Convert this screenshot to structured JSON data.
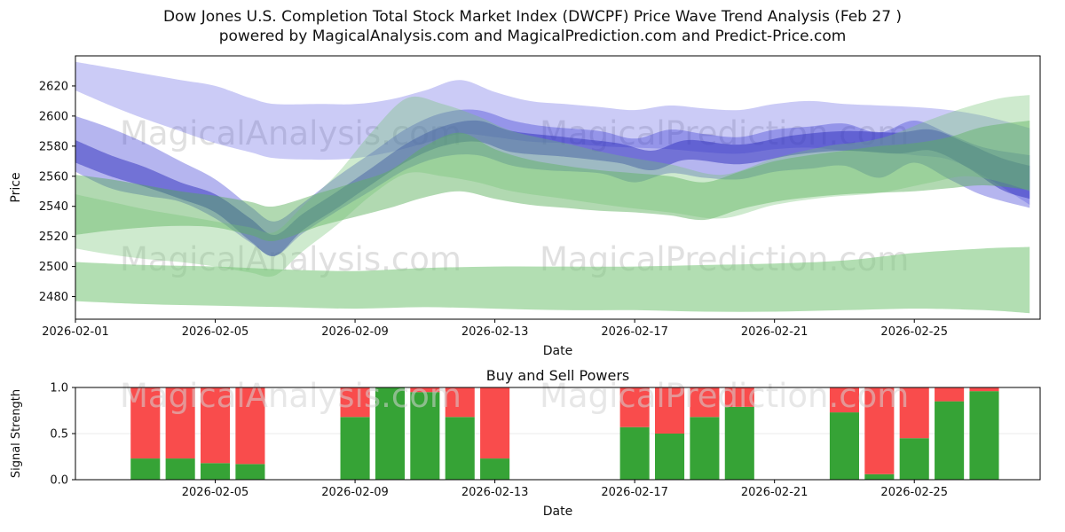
{
  "title_line1": "Dow Jones U.S. Completion Total Stock Market Index (DWCPF) Price Wave Trend Analysis (Feb 27 )",
  "title_line2": "powered by MagicalAnalysis.com and MagicalPrediction.com and Predict-Price.com",
  "watermarks": [
    "MagicalAnalysis.com",
    "MagicalPrediction.com"
  ],
  "colors": {
    "buy_green": "#36a336",
    "sell_red": "#f94c4c",
    "blue_band": "#3d3dd6",
    "green_band": "#51aa51",
    "watermark_gray": "#cccccc"
  },
  "chart_data": [
    {
      "type": "area",
      "title": "",
      "xlabel": "Date",
      "ylabel": "Price",
      "ylim": [
        2465,
        2640
      ],
      "xlim_days": [
        0,
        27.6
      ],
      "x_start_date": "2026-02-01",
      "y_ticks": [
        2480,
        2500,
        2520,
        2540,
        2560,
        2580,
        2600,
        2620
      ],
      "x_ticks": {
        "labels": [
          "2026-02-01",
          "2026-02-05",
          "2026-02-09",
          "2026-02-13",
          "2026-02-17",
          "2026-02-21",
          "2026-02-25"
        ],
        "days": [
          0,
          4,
          8,
          12,
          16,
          20,
          24
        ]
      },
      "grid": false,
      "legend": "none",
      "bands": [
        {
          "name": "upper-blue-wide",
          "color": "#4646e0",
          "opacity": 0.28,
          "points": [
            [
              0,
              2636,
              2617
            ],
            [
              1,
              2632,
              2607
            ],
            [
              2,
              2628,
              2598
            ],
            [
              3,
              2624,
              2590
            ],
            [
              4,
              2620,
              2582
            ],
            [
              5,
              2612,
              2576
            ],
            [
              5.7,
              2608,
              2572
            ],
            [
              7,
              2608,
              2571
            ],
            [
              8,
              2608,
              2572
            ],
            [
              9,
              2611,
              2576
            ],
            [
              10,
              2617,
              2582
            ],
            [
              11,
              2624,
              2588
            ],
            [
              12,
              2616,
              2586
            ],
            [
              13,
              2610,
              2583
            ],
            [
              14,
              2608,
              2582
            ],
            [
              15,
              2606,
              2580
            ],
            [
              16,
              2604,
              2579
            ],
            [
              17,
              2607,
              2578
            ],
            [
              18,
              2605,
              2576
            ],
            [
              19,
              2604,
              2575
            ],
            [
              20,
              2608,
              2578
            ],
            [
              21,
              2610,
              2579
            ],
            [
              22,
              2608,
              2577
            ],
            [
              23,
              2607,
              2576
            ],
            [
              24,
              2606,
              2574
            ],
            [
              25,
              2604,
              2571
            ],
            [
              26,
              2600,
              2560
            ],
            [
              27.3,
              2592,
              2541
            ]
          ]
        },
        {
          "name": "mid-blue",
          "color": "#3d3dd6",
          "opacity": 0.38,
          "points": [
            [
              0,
              2600,
              2563
            ],
            [
              1,
              2592,
              2552
            ],
            [
              2,
              2582,
              2547
            ],
            [
              3,
              2570,
              2543
            ],
            [
              4,
              2558,
              2532
            ],
            [
              5,
              2540,
              2516
            ],
            [
              5.7,
              2530,
              2507
            ],
            [
              6.5,
              2542,
              2522
            ],
            [
              7.5,
              2560,
              2537
            ],
            [
              8.5,
              2576,
              2551
            ],
            [
              9.5,
              2592,
              2565
            ],
            [
              10.5,
              2602,
              2573
            ],
            [
              11.5,
              2604,
              2574
            ],
            [
              12.5,
              2597,
              2567
            ],
            [
              13.5,
              2593,
              2564
            ],
            [
              15,
              2590,
              2562
            ],
            [
              16,
              2585,
              2556
            ],
            [
              17,
              2591,
              2562
            ],
            [
              18,
              2588,
              2559
            ],
            [
              19,
              2586,
              2558
            ],
            [
              20,
              2591,
              2563
            ],
            [
              21,
              2593,
              2565
            ],
            [
              22,
              2595,
              2567
            ],
            [
              23,
              2589,
              2559
            ],
            [
              24,
              2597,
              2569
            ],
            [
              25,
              2588,
              2558
            ],
            [
              26,
              2579,
              2547
            ],
            [
              27.3,
              2574,
              2539
            ]
          ]
        },
        {
          "name": "core-blue",
          "color": "#2f2fbe",
          "opacity": 0.5,
          "points": [
            [
              0,
              2584,
              2569
            ],
            [
              1,
              2574,
              2560
            ],
            [
              2,
              2566,
              2553
            ],
            [
              3,
              2556,
              2545
            ],
            [
              4,
              2548,
              2536
            ],
            [
              5,
              2532,
              2517
            ],
            [
              5.7,
              2521,
              2507
            ],
            [
              6.5,
              2535,
              2524
            ],
            [
              7.5,
              2550,
              2539
            ],
            [
              8.5,
              2566,
              2555
            ],
            [
              9.5,
              2582,
              2570
            ],
            [
              10.5,
              2593,
              2580
            ],
            [
              11.5,
              2597,
              2583
            ],
            [
              12.5,
              2590,
              2576
            ],
            [
              14,
              2586,
              2573
            ],
            [
              15.5,
              2582,
              2569
            ],
            [
              16.5,
              2577,
              2564
            ],
            [
              17.5,
              2584,
              2571
            ],
            [
              19,
              2581,
              2568
            ],
            [
              20.5,
              2587,
              2574
            ],
            [
              22,
              2590,
              2577
            ],
            [
              23.5,
              2589,
              2575
            ],
            [
              24.5,
              2591,
              2577
            ],
            [
              25.5,
              2582,
              2566
            ],
            [
              26.5,
              2572,
              2551
            ],
            [
              27.3,
              2567,
              2545
            ]
          ]
        },
        {
          "name": "lower-green-wide",
          "color": "#7fc87f",
          "opacity": 0.6,
          "points": [
            [
              0,
              2503,
              2477
            ],
            [
              2,
              2501,
              2475
            ],
            [
              4,
              2500,
              2474
            ],
            [
              6,
              2498,
              2473
            ],
            [
              8,
              2497,
              2472
            ],
            [
              10,
              2499,
              2473
            ],
            [
              12,
              2500,
              2472
            ],
            [
              14,
              2500,
              2471
            ],
            [
              16,
              2500,
              2471
            ],
            [
              18,
              2501,
              2470
            ],
            [
              20,
              2502,
              2470
            ],
            [
              22,
              2504,
              2471
            ],
            [
              24,
              2509,
              2472
            ],
            [
              26,
              2512,
              2471
            ],
            [
              27.3,
              2513,
              2469
            ]
          ]
        },
        {
          "name": "main-green",
          "color": "#51aa51",
          "opacity": 0.45,
          "points": [
            [
              0,
              2561,
              2521
            ],
            [
              1,
              2558,
              2524
            ],
            [
              2,
              2554,
              2526
            ],
            [
              3,
              2550,
              2527
            ],
            [
              4,
              2547,
              2526
            ],
            [
              5,
              2543,
              2521
            ],
            [
              5.7,
              2540,
              2517
            ],
            [
              7,
              2549,
              2527
            ],
            [
              8,
              2556,
              2533
            ],
            [
              9,
              2564,
              2539
            ],
            [
              10,
              2580,
              2546
            ],
            [
              11,
              2589,
              2550
            ],
            [
              12,
              2578,
              2545
            ],
            [
              13,
              2571,
              2541
            ],
            [
              14,
              2567,
              2539
            ],
            [
              15,
              2564,
              2537
            ],
            [
              16,
              2562,
              2536
            ],
            [
              17,
              2560,
              2534
            ],
            [
              18,
              2556,
              2531
            ],
            [
              19,
              2563,
              2538
            ],
            [
              20,
              2570,
              2543
            ],
            [
              21,
              2574,
              2546
            ],
            [
              22,
              2577,
              2548
            ],
            [
              23,
              2580,
              2549
            ],
            [
              24,
              2582,
              2550
            ],
            [
              25,
              2586,
              2552
            ],
            [
              26,
              2593,
              2554
            ],
            [
              27.3,
              2597,
              2551
            ]
          ]
        },
        {
          "name": "upper-green",
          "color": "#74c474",
          "opacity": 0.35,
          "points": [
            [
              0,
              2548,
              2512
            ],
            [
              1,
              2543,
              2508
            ],
            [
              2,
              2538,
              2505
            ],
            [
              3,
              2534,
              2503
            ],
            [
              4,
              2530,
              2500
            ],
            [
              5,
              2526,
              2496
            ],
            [
              5.7,
              2523,
              2494
            ],
            [
              6.5,
              2540,
              2510
            ],
            [
              7.5,
              2562,
              2528
            ],
            [
              8.5,
              2590,
              2548
            ],
            [
              9.5,
              2612,
              2562
            ],
            [
              10.5,
              2608,
              2560
            ],
            [
              11.5,
              2600,
              2556
            ],
            [
              12.5,
              2590,
              2550
            ],
            [
              14,
              2582,
              2545
            ],
            [
              15.5,
              2574,
              2540
            ],
            [
              17,
              2568,
              2536
            ],
            [
              18.5,
              2561,
              2532
            ],
            [
              20,
              2572,
              2541
            ],
            [
              21.5,
              2580,
              2546
            ],
            [
              23,
              2585,
              2549
            ],
            [
              24.5,
              2598,
              2556
            ],
            [
              25.5,
              2606,
              2560
            ],
            [
              26.5,
              2612,
              2556
            ],
            [
              27.3,
              2614,
              2550
            ]
          ]
        }
      ]
    },
    {
      "type": "bar",
      "title": "Buy and Sell Powers",
      "xlabel": "Date",
      "ylabel": "Signal Strength",
      "ylim": [
        0,
        1
      ],
      "xlim_days": [
        0,
        27.6
      ],
      "y_ticks": [
        "0.0",
        "0.5",
        "1.0"
      ],
      "x_ticks": {
        "labels": [
          "2026-02-05",
          "2026-02-09",
          "2026-02-13",
          "2026-02-17",
          "2026-02-21",
          "2026-02-25"
        ],
        "days": [
          4,
          8,
          12,
          16,
          20,
          24
        ]
      },
      "grid": true,
      "stacked": true,
      "series": [
        {
          "name": "Buy",
          "color": "#36a336"
        },
        {
          "name": "Sell",
          "color": "#f94c4c"
        }
      ],
      "bars": [
        {
          "date": "2026-02-03",
          "day": 2,
          "buy": 0.23,
          "sell": 0.77
        },
        {
          "date": "2026-02-04",
          "day": 3,
          "buy": 0.23,
          "sell": 0.77
        },
        {
          "date": "2026-02-05",
          "day": 4,
          "buy": 0.18,
          "sell": 0.82
        },
        {
          "date": "2026-02-06",
          "day": 5,
          "buy": 0.17,
          "sell": 0.83
        },
        {
          "date": "2026-02-09",
          "day": 8,
          "buy": 0.68,
          "sell": 0.32
        },
        {
          "date": "2026-02-10",
          "day": 9,
          "buy": 1.0,
          "sell": 0.0
        },
        {
          "date": "2026-02-11",
          "day": 10,
          "buy": 0.95,
          "sell": 0.05
        },
        {
          "date": "2026-02-12",
          "day": 11,
          "buy": 0.68,
          "sell": 0.32
        },
        {
          "date": "2026-02-13",
          "day": 12,
          "buy": 0.23,
          "sell": 0.77
        },
        {
          "date": "2026-02-17",
          "day": 16,
          "buy": 0.57,
          "sell": 0.43
        },
        {
          "date": "2026-02-18",
          "day": 17,
          "buy": 0.5,
          "sell": 0.5
        },
        {
          "date": "2026-02-19",
          "day": 18,
          "buy": 0.68,
          "sell": 0.32
        },
        {
          "date": "2026-02-20",
          "day": 19,
          "buy": 0.79,
          "sell": 0.21
        },
        {
          "date": "2026-02-23",
          "day": 22,
          "buy": 0.73,
          "sell": 0.27
        },
        {
          "date": "2026-02-24",
          "day": 23,
          "buy": 0.06,
          "sell": 0.94
        },
        {
          "date": "2026-02-25",
          "day": 24,
          "buy": 0.45,
          "sell": 0.55
        },
        {
          "date": "2026-02-26",
          "day": 25,
          "buy": 0.85,
          "sell": 0.15
        },
        {
          "date": "2026-02-27",
          "day": 26,
          "buy": 0.96,
          "sell": 0.04
        }
      ]
    }
  ]
}
